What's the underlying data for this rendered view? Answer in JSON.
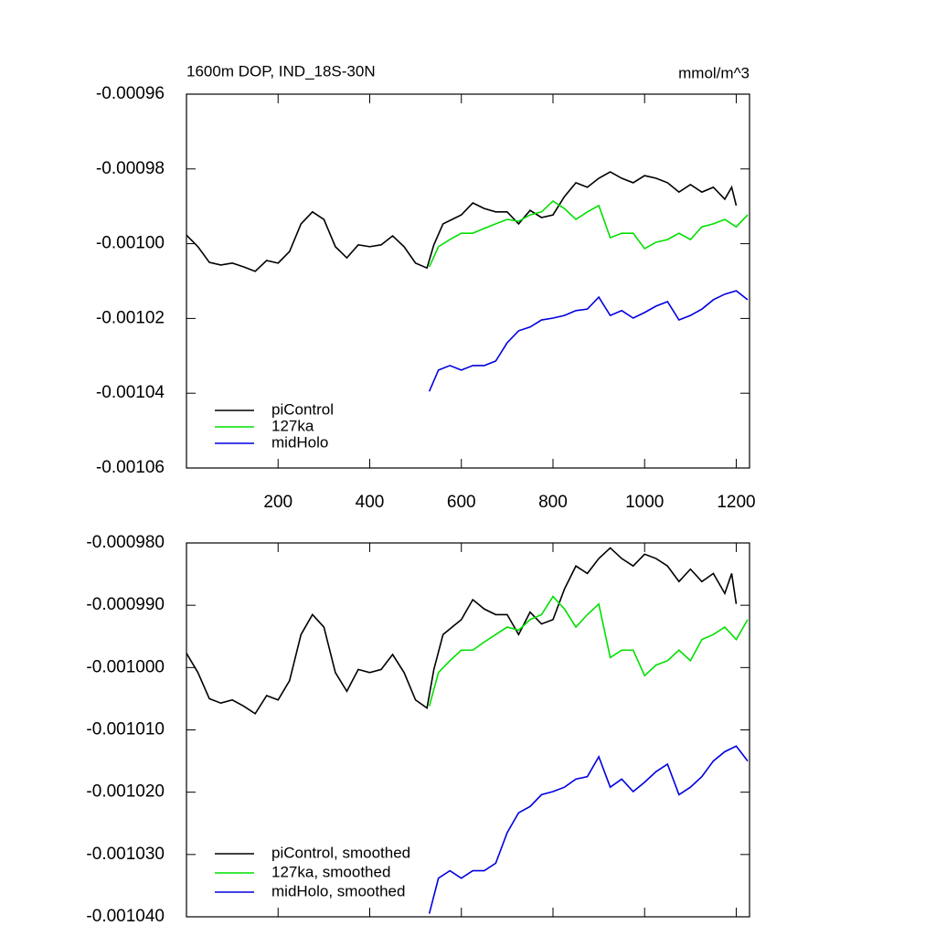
{
  "chart_data": [
    {
      "type": "line",
      "title": "1600m DOP, IND_18S-30N",
      "units": "mmol/m^3",
      "xlim": [
        0,
        1229
      ],
      "xticks": [
        200,
        400,
        600,
        800,
        1000,
        1200
      ],
      "ylim": [
        -0.00106,
        -0.00096
      ],
      "yticks": [
        -0.00096,
        -0.00098,
        {
          "value": -0.001,
          "label": "-0.00100"
        },
        -0.00102,
        -0.00104,
        -0.00106
      ],
      "legend": "lower left",
      "series": [
        {
          "name": "piControl",
          "color": "#000000",
          "x": [
            0,
            25,
            50,
            75,
            100,
            125,
            150,
            175,
            200,
            225,
            250,
            275,
            300,
            325,
            350,
            375,
            400,
            425,
            450,
            475,
            500,
            525,
            540,
            560,
            580,
            600,
            625,
            650,
            675,
            700,
            725,
            750,
            775,
            800,
            825,
            850,
            875,
            900,
            925,
            950,
            975,
            1000,
            1025,
            1050,
            1075,
            1100,
            1125,
            1150,
            1175,
            1190,
            1200
          ],
          "values": [
            -0.0009977,
            -0.0010008,
            -0.001005,
            -0.0010057,
            -0.0010052,
            -0.0010062,
            -0.0010074,
            -0.0010045,
            -0.0010052,
            -0.0010021,
            -0.0009947,
            -0.0009915,
            -0.0009935,
            -0.0010008,
            -0.0010038,
            -0.0010003,
            -0.0010008,
            -0.0010003,
            -0.0009979,
            -0.0010008,
            -0.0010052,
            -0.0010065,
            -0.0010003,
            -0.0009947,
            -0.0009935,
            -0.0009923,
            -0.0009891,
            -0.0009906,
            -0.0009915,
            -0.0009915,
            -0.0009947,
            -0.0009911,
            -0.000993,
            -0.0009923,
            -0.0009874,
            -0.0009837,
            -0.0009849,
            -0.0009825,
            -0.0009808,
            -0.0009825,
            -0.0009837,
            -0.0009818,
            -0.0009825,
            -0.0009837,
            -0.0009862,
            -0.0009842,
            -0.0009862,
            -0.0009849,
            -0.0009881,
            -0.0009849,
            -0.0009898
          ]
        },
        {
          "name": "127ka",
          "color": "#00e000",
          "x": [
            530,
            550,
            575,
            600,
            625,
            650,
            675,
            700,
            725,
            750,
            775,
            800,
            825,
            850,
            875,
            900,
            925,
            950,
            975,
            1000,
            1025,
            1050,
            1075,
            1100,
            1125,
            1150,
            1175,
            1200,
            1225
          ],
          "values": [
            -0.0010062,
            -0.0010008,
            -0.0009989,
            -0.0009972,
            -0.0009972,
            -0.0009959,
            -0.0009947,
            -0.0009935,
            -0.000994,
            -0.0009923,
            -0.0009915,
            -0.0009886,
            -0.0009906,
            -0.0009935,
            -0.0009915,
            -0.0009898,
            -0.0009984,
            -0.0009972,
            -0.0009972,
            -0.0010013,
            -0.0009996,
            -0.0009989,
            -0.0009972,
            -0.0009989,
            -0.0009955,
            -0.0009947,
            -0.0009935,
            -0.0009955,
            -0.0009923
          ]
        },
        {
          "name": "midHolo",
          "color": "#0000e0",
          "x": [
            530,
            550,
            575,
            600,
            625,
            650,
            675,
            700,
            725,
            750,
            775,
            800,
            825,
            850,
            875,
            900,
            925,
            950,
            975,
            1000,
            1025,
            1050,
            1075,
            1100,
            1125,
            1150,
            1175,
            1200,
            1225
          ],
          "values": [
            -0.0010395,
            -0.0010338,
            -0.0010326,
            -0.0010338,
            -0.0010326,
            -0.0010326,
            -0.0010314,
            -0.0010265,
            -0.0010233,
            -0.0010223,
            -0.0010204,
            -0.0010199,
            -0.0010192,
            -0.0010179,
            -0.0010175,
            -0.0010143,
            -0.0010192,
            -0.0010179,
            -0.0010199,
            -0.0010184,
            -0.0010167,
            -0.0010155,
            -0.0010204,
            -0.0010192,
            -0.0010175,
            -0.001015,
            -0.0010135,
            -0.0010126,
            -0.001015
          ]
        }
      ]
    },
    {
      "type": "line",
      "xlim": [
        0,
        1229
      ],
      "ylim": [
        -0.00104,
        -0.00098
      ],
      "yticks": [
        {
          "value": -0.00098,
          "label": "-0.000980"
        },
        {
          "value": -0.00099,
          "label": "-0.000990"
        },
        {
          "value": -0.001,
          "label": "-0.001000"
        },
        {
          "value": -0.00101,
          "label": "-0.001010"
        },
        {
          "value": -0.00102,
          "label": "-0.001020"
        },
        {
          "value": -0.00103,
          "label": "-0.001030"
        },
        {
          "value": -0.00104,
          "label": "-0.001040"
        }
      ],
      "legend": "lower left",
      "series": [
        {
          "name": "piControl, smoothed",
          "color": "#000000",
          "x": [
            0,
            25,
            50,
            75,
            100,
            125,
            150,
            175,
            200,
            225,
            250,
            275,
            300,
            325,
            350,
            375,
            400,
            425,
            450,
            475,
            500,
            525,
            540,
            560,
            580,
            600,
            625,
            650,
            675,
            700,
            725,
            750,
            775,
            800,
            825,
            850,
            875,
            900,
            925,
            950,
            975,
            1000,
            1025,
            1050,
            1075,
            1100,
            1125,
            1150,
            1175,
            1190,
            1200
          ],
          "values": [
            -0.0009977,
            -0.0010008,
            -0.001005,
            -0.0010057,
            -0.0010052,
            -0.0010062,
            -0.0010074,
            -0.0010045,
            -0.0010052,
            -0.0010021,
            -0.0009947,
            -0.0009915,
            -0.0009935,
            -0.0010008,
            -0.0010038,
            -0.0010003,
            -0.0010008,
            -0.0010003,
            -0.0009979,
            -0.0010008,
            -0.0010052,
            -0.0010065,
            -0.0010003,
            -0.0009947,
            -0.0009935,
            -0.0009923,
            -0.0009891,
            -0.0009906,
            -0.0009915,
            -0.0009915,
            -0.0009947,
            -0.0009911,
            -0.000993,
            -0.0009923,
            -0.0009874,
            -0.0009837,
            -0.0009849,
            -0.0009825,
            -0.0009808,
            -0.0009825,
            -0.0009837,
            -0.0009818,
            -0.0009825,
            -0.0009837,
            -0.0009862,
            -0.0009842,
            -0.0009862,
            -0.0009849,
            -0.0009881,
            -0.0009849,
            -0.0009898
          ]
        },
        {
          "name": "127ka, smoothed",
          "color": "#00e000",
          "x": [
            530,
            550,
            575,
            600,
            625,
            650,
            675,
            700,
            725,
            750,
            775,
            800,
            825,
            850,
            875,
            900,
            925,
            950,
            975,
            1000,
            1025,
            1050,
            1075,
            1100,
            1125,
            1150,
            1175,
            1200,
            1225
          ],
          "values": [
            -0.0010062,
            -0.0010008,
            -0.0009989,
            -0.0009972,
            -0.0009972,
            -0.0009959,
            -0.0009947,
            -0.0009935,
            -0.000994,
            -0.0009923,
            -0.0009915,
            -0.0009886,
            -0.0009906,
            -0.0009935,
            -0.0009915,
            -0.0009898,
            -0.0009984,
            -0.0009972,
            -0.0009972,
            -0.0010013,
            -0.0009996,
            -0.0009989,
            -0.0009972,
            -0.0009989,
            -0.0009955,
            -0.0009947,
            -0.0009935,
            -0.0009955,
            -0.0009923
          ]
        },
        {
          "name": "midHolo, smoothed",
          "color": "#0000e0",
          "x": [
            530,
            550,
            575,
            600,
            625,
            650,
            675,
            700,
            725,
            750,
            775,
            800,
            825,
            850,
            875,
            900,
            925,
            950,
            975,
            1000,
            1025,
            1050,
            1075,
            1100,
            1125,
            1150,
            1175,
            1200,
            1225
          ],
          "values": [
            -0.0010395,
            -0.0010338,
            -0.0010326,
            -0.0010338,
            -0.0010326,
            -0.0010326,
            -0.0010314,
            -0.0010265,
            -0.0010233,
            -0.0010223,
            -0.0010204,
            -0.0010199,
            -0.0010192,
            -0.0010179,
            -0.0010175,
            -0.0010143,
            -0.0010192,
            -0.0010179,
            -0.0010199,
            -0.0010184,
            -0.0010167,
            -0.0010155,
            -0.0010204,
            -0.0010192,
            -0.0010175,
            -0.001015,
            -0.0010135,
            -0.0010126,
            -0.001015
          ]
        }
      ]
    }
  ]
}
